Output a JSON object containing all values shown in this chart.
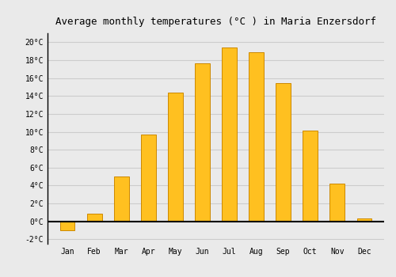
{
  "months": [
    "Jan",
    "Feb",
    "Mar",
    "Apr",
    "May",
    "Jun",
    "Jul",
    "Aug",
    "Sep",
    "Oct",
    "Nov",
    "Dec"
  ],
  "temperatures": [
    -1.0,
    0.9,
    5.0,
    9.7,
    14.4,
    17.6,
    19.4,
    18.9,
    15.4,
    10.1,
    4.2,
    0.3
  ],
  "bar_color": "#FFC020",
  "bar_edge_color": "#CC8800",
  "title": "Average monthly temperatures (°C ) in Maria Enzersdorf",
  "title_fontsize": 9,
  "ylim": [
    -2.5,
    21.0
  ],
  "background_color": "#EAEAEA",
  "plot_bg_color": "#EAEAEA",
  "grid_color": "#CCCCCC",
  "font_family": "monospace",
  "bar_width": 0.55
}
